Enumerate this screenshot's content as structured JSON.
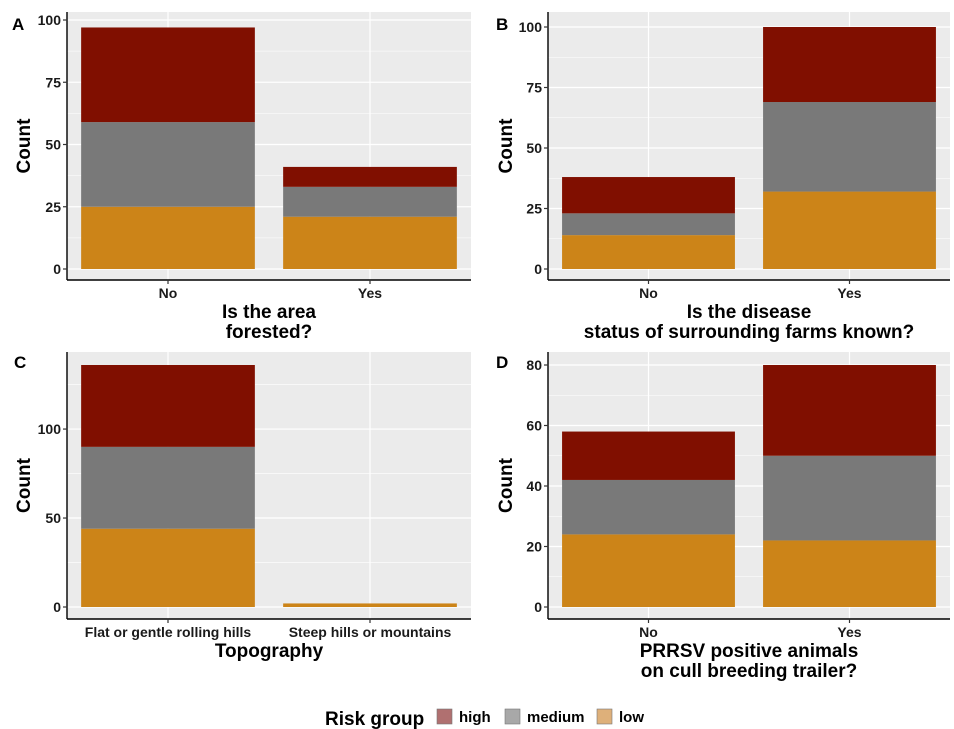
{
  "legend": {
    "title": "Risk group",
    "position": "bottom",
    "items": [
      {
        "label": "high",
        "color": "#b07070"
      },
      {
        "label": "medium",
        "color": "#a8a8a8"
      },
      {
        "label": "low",
        "color": "#deb07a"
      }
    ]
  },
  "colors": {
    "high": "#800f00",
    "medium": "#797979",
    "low": "#cc8418",
    "panel_bg": "#ebebeb",
    "grid": "#ffffff"
  },
  "chart_data": [
    {
      "tag": "A",
      "type": "bar",
      "stacked": true,
      "categories": [
        "No",
        "Yes"
      ],
      "xlabel": [
        "Is the area",
        "forested?"
      ],
      "ylabel": "Count",
      "ylim": [
        0,
        100
      ],
      "yticks": [
        0,
        25,
        50,
        75,
        100
      ],
      "series": [
        {
          "name": "low",
          "values": [
            25,
            21
          ]
        },
        {
          "name": "medium",
          "values": [
            34,
            12
          ]
        },
        {
          "name": "high",
          "values": [
            38,
            8
          ]
        }
      ]
    },
    {
      "tag": "B",
      "type": "bar",
      "stacked": true,
      "categories": [
        "No",
        "Yes"
      ],
      "xlabel": [
        "Is the disease",
        "status of surrounding farms known?"
      ],
      "ylabel": "Count",
      "ylim": [
        0,
        100
      ],
      "yticks": [
        0,
        25,
        50,
        75,
        100
      ],
      "series": [
        {
          "name": "low",
          "values": [
            14,
            32
          ]
        },
        {
          "name": "medium",
          "values": [
            9,
            37
          ]
        },
        {
          "name": "high",
          "values": [
            15,
            31
          ]
        }
      ]
    },
    {
      "tag": "C",
      "type": "bar",
      "stacked": true,
      "categories": [
        "Flat or gentle rolling hills",
        "Steep hills or mountains"
      ],
      "xlabel": [
        "Topography"
      ],
      "ylabel": "Count",
      "ylim": [
        0,
        136
      ],
      "yticks": [
        0,
        50,
        100
      ],
      "series": [
        {
          "name": "low",
          "values": [
            44,
            2
          ]
        },
        {
          "name": "medium",
          "values": [
            46,
            0
          ]
        },
        {
          "name": "high",
          "values": [
            46,
            0
          ]
        }
      ]
    },
    {
      "tag": "D",
      "type": "bar",
      "stacked": true,
      "categories": [
        "No",
        "Yes"
      ],
      "xlabel": [
        "PRRSV positive animals",
        "on cull breeding trailer?"
      ],
      "ylabel": "Count",
      "ylim": [
        0,
        80
      ],
      "yticks": [
        0,
        20,
        40,
        60,
        80
      ],
      "series": [
        {
          "name": "low",
          "values": [
            24,
            22
          ]
        },
        {
          "name": "medium",
          "values": [
            18,
            28
          ]
        },
        {
          "name": "high",
          "values": [
            16,
            30
          ]
        }
      ]
    }
  ]
}
